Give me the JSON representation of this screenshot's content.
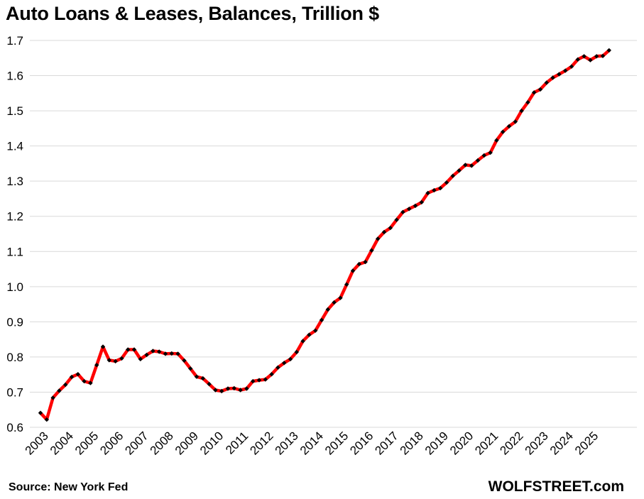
{
  "chart_data": {
    "type": "line",
    "title": "Auto Loans & Leases, Balances, Trillion $",
    "xlabel": "",
    "ylabel": "",
    "ylim": [
      0.6,
      1.7
    ],
    "yticks": [
      "0.6",
      "0.7",
      "0.8",
      "0.9",
      "1.0",
      "1.1",
      "1.2",
      "1.3",
      "1.4",
      "1.5",
      "1.6",
      "1.7"
    ],
    "xticks": [
      "2003",
      "2004",
      "2005",
      "2006",
      "2007",
      "2008",
      "2009",
      "2010",
      "2011",
      "2012",
      "2013",
      "2014",
      "2015",
      "2016",
      "2017",
      "2018",
      "2019",
      "2020",
      "2021",
      "2022",
      "2023",
      "2024",
      "2025"
    ],
    "grid": true,
    "legend": "none",
    "line_color": "#ff0000",
    "marker_color": "#000000",
    "series": [
      {
        "start": "2003-Q1",
        "frequency": "quarterly",
        "values": [
          0.641,
          0.622,
          0.684,
          0.704,
          0.721,
          0.743,
          0.751,
          0.731,
          0.726,
          0.777,
          0.829,
          0.791,
          0.788,
          0.796,
          0.821,
          0.821,
          0.794,
          0.806,
          0.817,
          0.815,
          0.809,
          0.81,
          0.809,
          0.79,
          0.767,
          0.744,
          0.739,
          0.723,
          0.706,
          0.703,
          0.71,
          0.711,
          0.706,
          0.71,
          0.731,
          0.734,
          0.736,
          0.751,
          0.77,
          0.783,
          0.794,
          0.814,
          0.845,
          0.863,
          0.875,
          0.905,
          0.935,
          0.955,
          0.968,
          1.006,
          1.045,
          1.064,
          1.07,
          1.103,
          1.136,
          1.155,
          1.167,
          1.19,
          1.212,
          1.221,
          1.23,
          1.24,
          1.266,
          1.274,
          1.28,
          1.296,
          1.315,
          1.33,
          1.346,
          1.344,
          1.359,
          1.373,
          1.381,
          1.416,
          1.44,
          1.456,
          1.469,
          1.5,
          1.524,
          1.552,
          1.561,
          1.58,
          1.594,
          1.604,
          1.614,
          1.626,
          1.646,
          1.655,
          1.644,
          1.655,
          1.656,
          1.672
        ]
      }
    ]
  },
  "footer": {
    "source": "Source: New York Fed",
    "credit": "WOLFSTREET.com"
  }
}
